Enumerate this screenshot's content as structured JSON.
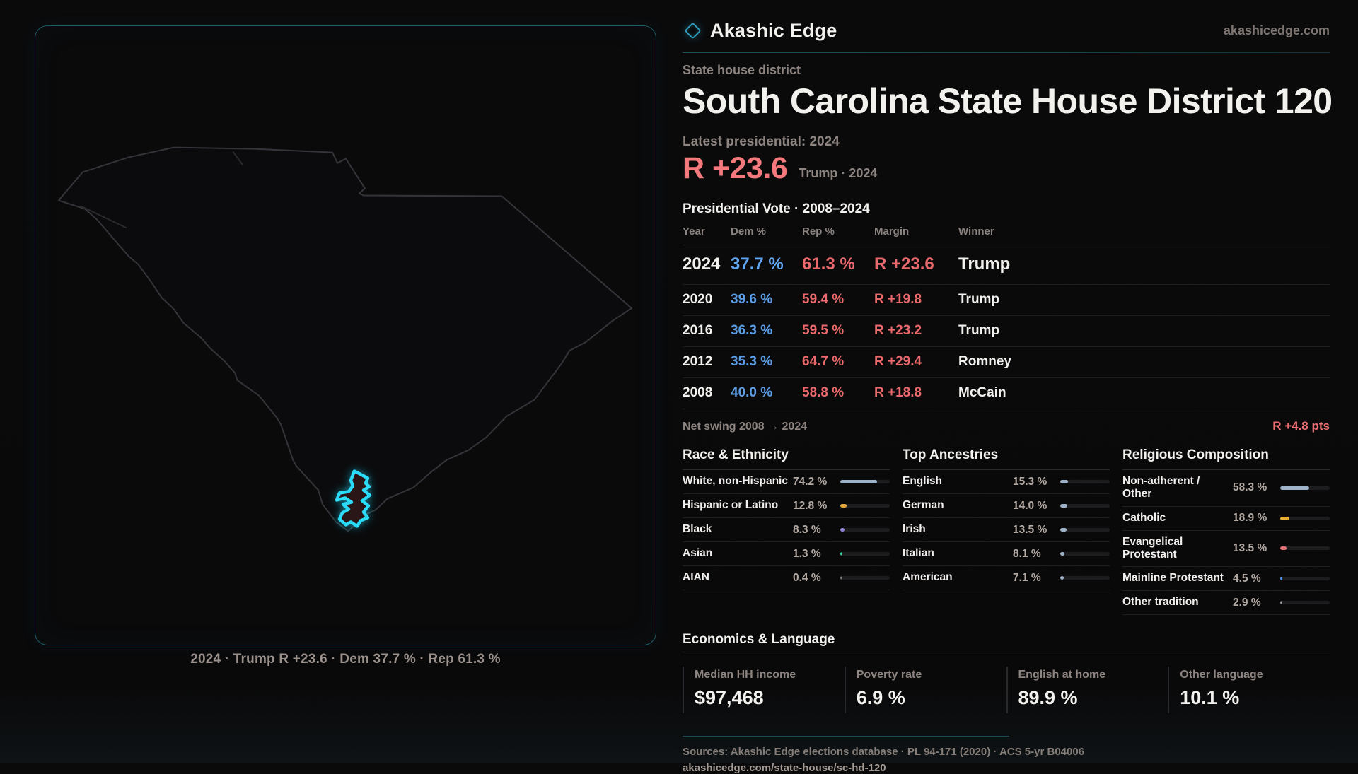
{
  "brand": {
    "name": "Akashic Edge",
    "domain": "akashicedge.com"
  },
  "page": {
    "kicker": "State house district",
    "title": "South Carolina State House District 120",
    "latest_label": "Latest presidential: 2024",
    "headline_margin": "R +23.6",
    "headline_context": "Trump · 2024",
    "table_title": "Presidential Vote · 2008–2024"
  },
  "map": {
    "caption": "2024 · Trump R +23.6 · Dem 37.7 % · Rep 61.3 %",
    "highlight_color": "#2adcf8"
  },
  "results_table": {
    "columns": [
      "Year",
      "Dem %",
      "Rep %",
      "Margin",
      "Winner"
    ],
    "rows": [
      {
        "year": "2024",
        "dem": "37.7 %",
        "rep": "61.3 %",
        "margin": "R +23.6",
        "winner": "Trump",
        "emphasis": true
      },
      {
        "year": "2020",
        "dem": "39.6 %",
        "rep": "59.4 %",
        "margin": "R +19.8",
        "winner": "Trump",
        "emphasis": false
      },
      {
        "year": "2016",
        "dem": "36.3 %",
        "rep": "59.5 %",
        "margin": "R +23.2",
        "winner": "Trump",
        "emphasis": false
      },
      {
        "year": "2012",
        "dem": "35.3 %",
        "rep": "64.7 %",
        "margin": "R +29.4",
        "winner": "Romney",
        "emphasis": false
      },
      {
        "year": "2008",
        "dem": "40.0 %",
        "rep": "58.8 %",
        "margin": "R +18.8",
        "winner": "McCain",
        "emphasis": false
      }
    ]
  },
  "net_swing": {
    "label": "Net swing 2008 → 2024",
    "value": "R +4.8 pts"
  },
  "demographics": [
    {
      "title": "Race & Ethnicity",
      "rows": [
        {
          "label": "White, non-Hispanic",
          "value": "74.2 %",
          "pct": 74.2,
          "color": "#9fb3c8"
        },
        {
          "label": "Hispanic or Latino",
          "value": "12.8 %",
          "pct": 12.8,
          "color": "#e3a63a"
        },
        {
          "label": "Black",
          "value": "8.3 %",
          "pct": 8.3,
          "color": "#9282d8"
        },
        {
          "label": "Asian",
          "value": "1.3 %",
          "pct": 1.3,
          "color": "#3bd6a8"
        },
        {
          "label": "AIAN",
          "value": "0.4 %",
          "pct": 0.4,
          "color": "#7a7a80"
        }
      ]
    },
    {
      "title": "Top Ancestries",
      "rows": [
        {
          "label": "English",
          "value": "15.3 %",
          "pct": 15.3,
          "color": "#9fb3c8"
        },
        {
          "label": "German",
          "value": "14.0 %",
          "pct": 14.0,
          "color": "#9fb3c8"
        },
        {
          "label": "Irish",
          "value": "13.5 %",
          "pct": 13.5,
          "color": "#9fb3c8"
        },
        {
          "label": "Italian",
          "value": "8.1 %",
          "pct": 8.1,
          "color": "#9fb3c8"
        },
        {
          "label": "American",
          "value": "7.1 %",
          "pct": 7.1,
          "color": "#9fb3c8"
        }
      ]
    },
    {
      "title": "Religious Composition",
      "rows": [
        {
          "label": "Non-adherent / Other",
          "value": "58.3 %",
          "pct": 58.3,
          "color": "#9fb3c8"
        },
        {
          "label": "Catholic",
          "value": "18.9 %",
          "pct": 18.9,
          "color": "#e3b032"
        },
        {
          "label": "Evangelical Protestant",
          "value": "13.5 %",
          "pct": 13.5,
          "color": "#e07073"
        },
        {
          "label": "Mainline Protestant",
          "value": "4.5 %",
          "pct": 4.5,
          "color": "#4d8de8"
        },
        {
          "label": "Other tradition",
          "value": "2.9 %",
          "pct": 2.9,
          "color": "#97979c"
        }
      ]
    }
  ],
  "economics": {
    "title": "Economics & Language",
    "stats": [
      {
        "label": "Median HH income",
        "value": "$97,468"
      },
      {
        "label": "Poverty rate",
        "value": "6.9 %"
      },
      {
        "label": "English at home",
        "value": "89.9 %"
      },
      {
        "label": "Other language",
        "value": "10.1 %"
      }
    ]
  },
  "footer": {
    "sources": "Sources: Akashic Edge elections database · PL 94-171 (2020) · ACS 5-yr B04006",
    "url": "akashicedge.com/state-house/sc-hd-120"
  },
  "chart_data": [
    {
      "type": "table",
      "title": "Presidential Vote · 2008–2024",
      "columns": [
        "Year",
        "Dem %",
        "Rep %",
        "Margin",
        "Winner"
      ],
      "rows": [
        [
          "2024",
          37.7,
          61.3,
          "R +23.6",
          "Trump"
        ],
        [
          "2020",
          39.6,
          59.4,
          "R +19.8",
          "Trump"
        ],
        [
          "2016",
          36.3,
          59.5,
          "R +23.2",
          "Trump"
        ],
        [
          "2012",
          35.3,
          64.7,
          "R +29.4",
          "Romney"
        ],
        [
          "2008",
          40.0,
          58.8,
          "R +18.8",
          "McCain"
        ]
      ]
    },
    {
      "type": "bar",
      "title": "Race & Ethnicity",
      "categories": [
        "White, non-Hispanic",
        "Hispanic or Latino",
        "Black",
        "Asian",
        "AIAN"
      ],
      "values": [
        74.2,
        12.8,
        8.3,
        1.3,
        0.4
      ],
      "xlabel": "",
      "ylabel": "%",
      "ylim": [
        0,
        100
      ]
    },
    {
      "type": "bar",
      "title": "Top Ancestries",
      "categories": [
        "English",
        "German",
        "Irish",
        "Italian",
        "American"
      ],
      "values": [
        15.3,
        14.0,
        13.5,
        8.1,
        7.1
      ],
      "xlabel": "",
      "ylabel": "%",
      "ylim": [
        0,
        100
      ]
    },
    {
      "type": "bar",
      "title": "Religious Composition",
      "categories": [
        "Non-adherent / Other",
        "Catholic",
        "Evangelical Protestant",
        "Mainline Protestant",
        "Other tradition"
      ],
      "values": [
        58.3,
        18.9,
        13.5,
        4.5,
        2.9
      ],
      "xlabel": "",
      "ylabel": "%",
      "ylim": [
        0,
        100
      ]
    }
  ]
}
